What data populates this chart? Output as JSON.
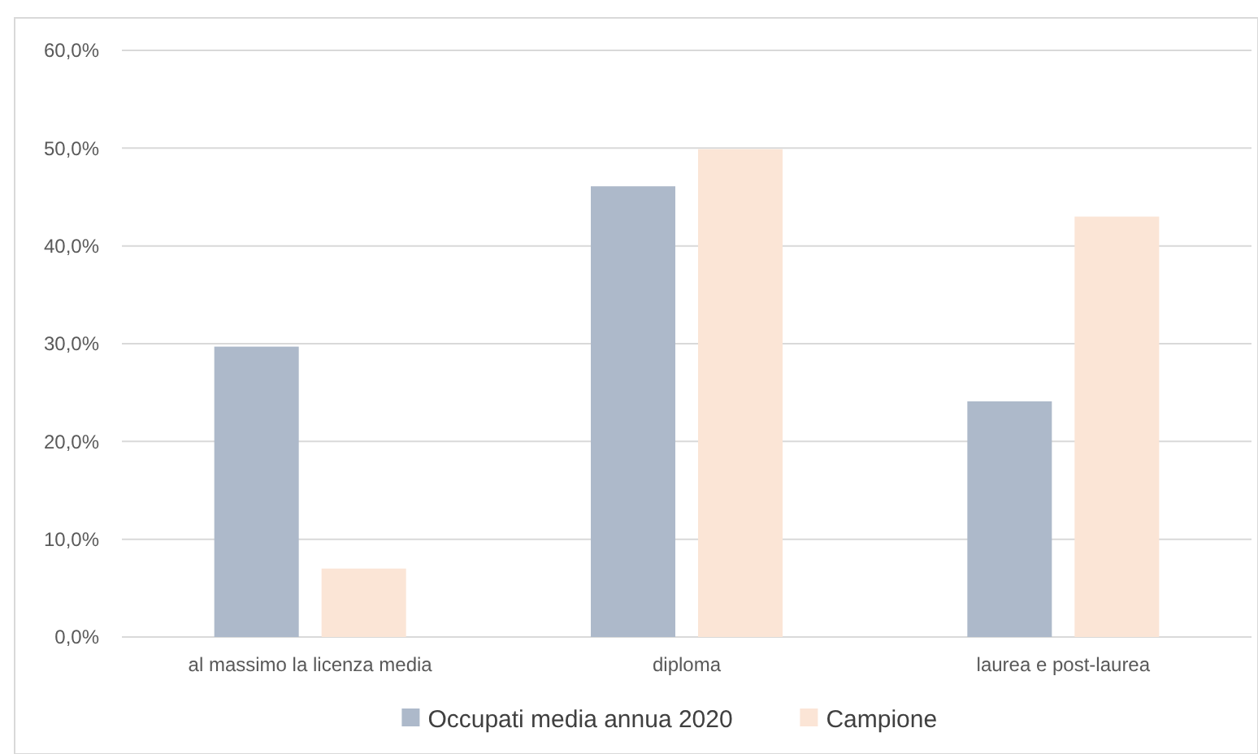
{
  "chart_data": {
    "type": "bar",
    "categories": [
      "al massimo la licenza media",
      "diploma",
      "laurea e post-laurea"
    ],
    "series": [
      {
        "name": "Occupati media annua 2020",
        "color": "#adb9ca",
        "values": [
          29.7,
          46.1,
          24.1
        ]
      },
      {
        "name": "Campione",
        "color": "#fbe5d6",
        "values": [
          7.0,
          49.9,
          43.0
        ]
      }
    ],
    "ylim": [
      0,
      60
    ],
    "yticks": [
      {
        "value": 0,
        "label": "0,0%"
      },
      {
        "value": 10,
        "label": "10,0%"
      },
      {
        "value": 20,
        "label": "20,0%"
      },
      {
        "value": 30,
        "label": "30,0%"
      },
      {
        "value": 40,
        "label": "40,0%"
      },
      {
        "value": 50,
        "label": "50,0%"
      },
      {
        "value": 60,
        "label": "60,0%"
      }
    ],
    "grid": "y",
    "legend": "bottom"
  }
}
